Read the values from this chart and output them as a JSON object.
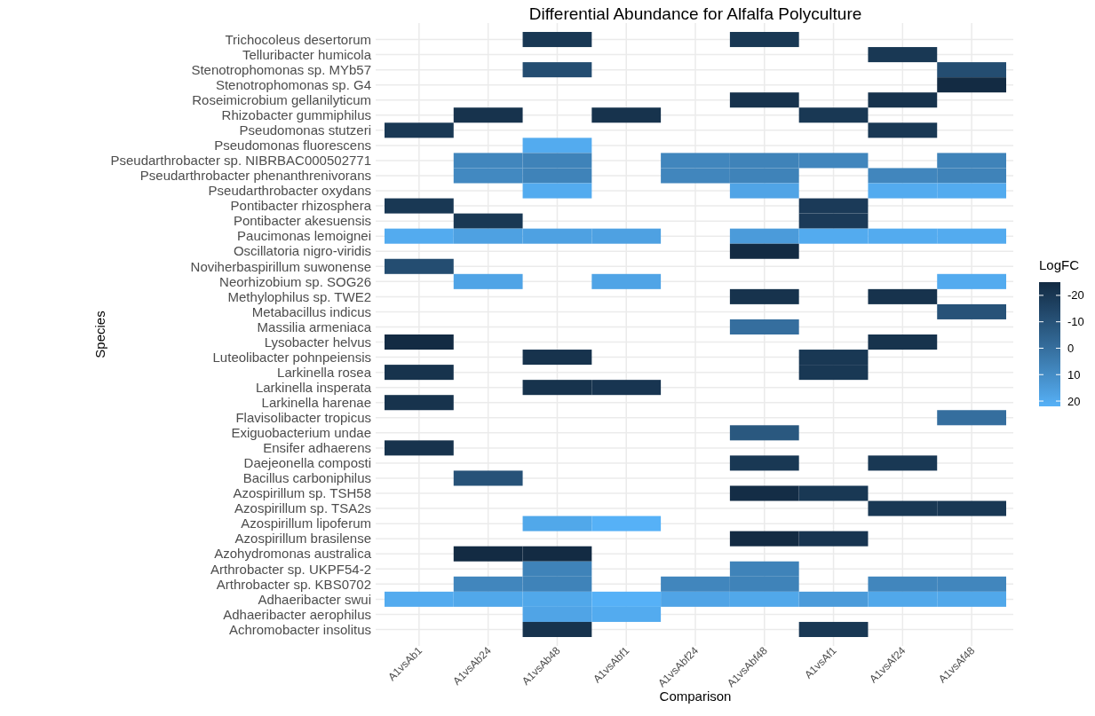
{
  "chart_data": {
    "type": "heatmap",
    "title": "Differential Abundance for Alfalfa Polyculture",
    "xlabel": "Comparison",
    "ylabel": "Species",
    "clabel": "LogFC",
    "categories": [
      "A1vsAb1",
      "A1vsAb24",
      "A1vsAb48",
      "A1vsAbf1",
      "A1vsAbf24",
      "A1vsAbf48",
      "A1vsAf1",
      "A1vsAf24",
      "A1vsAf48"
    ],
    "y_categories": [
      "Trichocoleus desertorum",
      "Telluribacter humicola",
      "Stenotrophomonas sp. MYb57",
      "Stenotrophomonas sp. G4",
      "Roseimicrobium gellanilyticum",
      "Rhizobacter gummiphilus",
      "Pseudomonas stutzeri",
      "Pseudomonas fluorescens",
      "Pseudarthrobacter sp. NIBRBAC000502771",
      "Pseudarthrobacter phenanthrenivorans",
      "Pseudarthrobacter oxydans",
      "Pontibacter rhizosphera",
      "Pontibacter akesuensis",
      "Paucimonas lemoignei",
      "Oscillatoria nigro-viridis",
      "Noviherbaspirillum suwonense",
      "Neorhizobium sp. SOG26",
      "Methylophilus sp. TWE2",
      "Metabacillus indicus",
      "Massilia armeniaca",
      "Lysobacter helvus",
      "Luteolibacter pohnpeiensis",
      "Larkinella rosea",
      "Larkinella insperata",
      "Larkinella harenae",
      "Flavisolibacter tropicus",
      "Exiguobacterium undae",
      "Ensifer adhaerens",
      "Daejeonella composti",
      "Bacillus carboniphilus",
      "Azospirillum sp. TSH58",
      "Azospirillum sp. TSA2s",
      "Azospirillum lipoferum",
      "Azospirillum brasilense",
      "Azohydromonas australica",
      "Arthrobacter sp. UKPF54-2",
      "Arthrobacter sp. KBS0702",
      "Adhaeribacter swui",
      "Adhaeribacter aerophilus",
      "Achromobacter insolitus"
    ],
    "cells": [
      [
        null,
        null,
        -20,
        null,
        null,
        -20,
        null,
        null,
        null
      ],
      [
        null,
        null,
        null,
        null,
        null,
        null,
        null,
        -20,
        null
      ],
      [
        null,
        null,
        -12,
        null,
        null,
        null,
        null,
        null,
        -12
      ],
      [
        null,
        null,
        null,
        null,
        null,
        null,
        null,
        null,
        -25
      ],
      [
        null,
        null,
        null,
        null,
        null,
        -22,
        null,
        -22,
        null
      ],
      [
        null,
        -22,
        null,
        -22,
        null,
        null,
        -20,
        null,
        null
      ],
      [
        -20,
        null,
        null,
        null,
        null,
        null,
        null,
        -20,
        null
      ],
      [
        null,
        null,
        20,
        null,
        null,
        null,
        null,
        null,
        null
      ],
      [
        null,
        8,
        7,
        null,
        8,
        7,
        8,
        null,
        7
      ],
      [
        null,
        9,
        7,
        null,
        8,
        7,
        null,
        8,
        7
      ],
      [
        null,
        null,
        20,
        null,
        null,
        18,
        null,
        20,
        20
      ],
      [
        -20,
        null,
        null,
        null,
        null,
        null,
        -19,
        null,
        null
      ],
      [
        null,
        -20,
        null,
        null,
        null,
        null,
        -19,
        null,
        null
      ],
      [
        20,
        17,
        17,
        17,
        null,
        15,
        20,
        20,
        20
      ],
      [
        null,
        null,
        null,
        null,
        null,
        -25,
        null,
        null,
        null
      ],
      [
        -12,
        null,
        null,
        null,
        null,
        null,
        null,
        null,
        null
      ],
      [
        null,
        18,
        null,
        18,
        null,
        null,
        null,
        null,
        20
      ],
      [
        null,
        null,
        null,
        null,
        null,
        -22,
        null,
        -22,
        null
      ],
      [
        null,
        null,
        null,
        null,
        null,
        null,
        null,
        null,
        -10
      ],
      [
        null,
        null,
        null,
        null,
        null,
        0,
        null,
        null,
        null
      ],
      [
        -25,
        null,
        null,
        null,
        null,
        null,
        null,
        -22,
        null
      ],
      [
        null,
        null,
        -22,
        null,
        null,
        null,
        -20,
        null,
        null
      ],
      [
        -22,
        null,
        null,
        null,
        null,
        null,
        -20,
        null,
        null
      ],
      [
        null,
        null,
        -22,
        -21,
        null,
        null,
        null,
        null,
        null
      ],
      [
        -22,
        null,
        null,
        null,
        null,
        null,
        null,
        null,
        null
      ],
      [
        null,
        null,
        null,
        null,
        null,
        null,
        null,
        null,
        0
      ],
      [
        null,
        null,
        null,
        null,
        null,
        -8,
        null,
        null,
        null
      ],
      [
        -22,
        null,
        null,
        null,
        null,
        null,
        null,
        null,
        null
      ],
      [
        null,
        null,
        null,
        null,
        null,
        -20,
        null,
        -20,
        null
      ],
      [
        null,
        -10,
        null,
        null,
        null,
        null,
        null,
        null,
        null
      ],
      [
        null,
        null,
        null,
        null,
        null,
        -24,
        -20,
        null,
        null
      ],
      [
        null,
        null,
        null,
        null,
        null,
        null,
        null,
        -20,
        -20
      ],
      [
        null,
        null,
        19,
        22,
        null,
        null,
        null,
        null,
        null
      ],
      [
        null,
        null,
        null,
        null,
        null,
        -25,
        -21,
        null,
        null
      ],
      [
        null,
        -25,
        -25,
        null,
        null,
        null,
        null,
        null,
        null
      ],
      [
        null,
        null,
        7,
        null,
        null,
        7,
        null,
        null,
        null
      ],
      [
        null,
        8,
        7,
        null,
        8,
        7,
        null,
        8,
        8
      ],
      [
        20,
        19,
        19,
        22,
        18,
        19,
        15,
        19,
        19
      ],
      [
        null,
        null,
        18,
        20,
        null,
        null,
        null,
        null,
        null
      ],
      [
        null,
        null,
        -22,
        null,
        null,
        null,
        -20,
        null,
        null
      ]
    ],
    "clim": [
      -25,
      22
    ],
    "cticks": [
      -20,
      -10,
      0,
      10,
      20
    ],
    "grid": true
  }
}
